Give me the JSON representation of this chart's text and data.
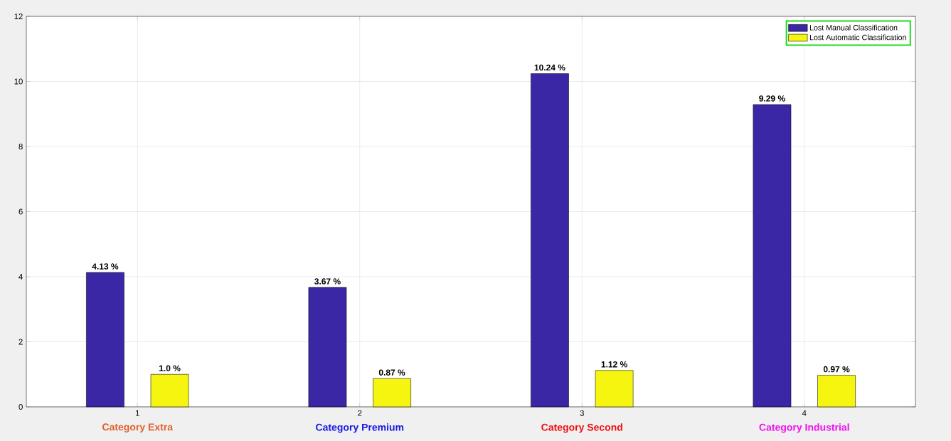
{
  "chart_data": {
    "type": "bar",
    "x": [
      1,
      2,
      3,
      4
    ],
    "xlim": [
      0.5,
      4.5
    ],
    "xticks": [
      1,
      2,
      3,
      4
    ],
    "ylim": [
      0,
      12
    ],
    "yticks": [
      0,
      2,
      4,
      6,
      8,
      10,
      12
    ],
    "grid": true,
    "legend": "top right",
    "series": [
      {
        "name": "Lost Manual Classification",
        "color": "#3a27a6",
        "values": [
          4.13,
          3.67,
          10.24,
          9.29
        ],
        "value_labels": [
          "4.13 %",
          "3.67 %",
          "10.24 %",
          "9.29 %"
        ]
      },
      {
        "name": "Lost Automatic Classification",
        "color": "#f5f50f",
        "values": [
          1.0,
          0.87,
          1.12,
          0.97
        ],
        "value_labels": [
          "1.0 %",
          "0.87 %",
          "1.12 %",
          "0.97 %"
        ]
      }
    ],
    "annotations": [
      "Category Extra",
      "Category Premium",
      "Category Second",
      "Category Industrial"
    ]
  }
}
